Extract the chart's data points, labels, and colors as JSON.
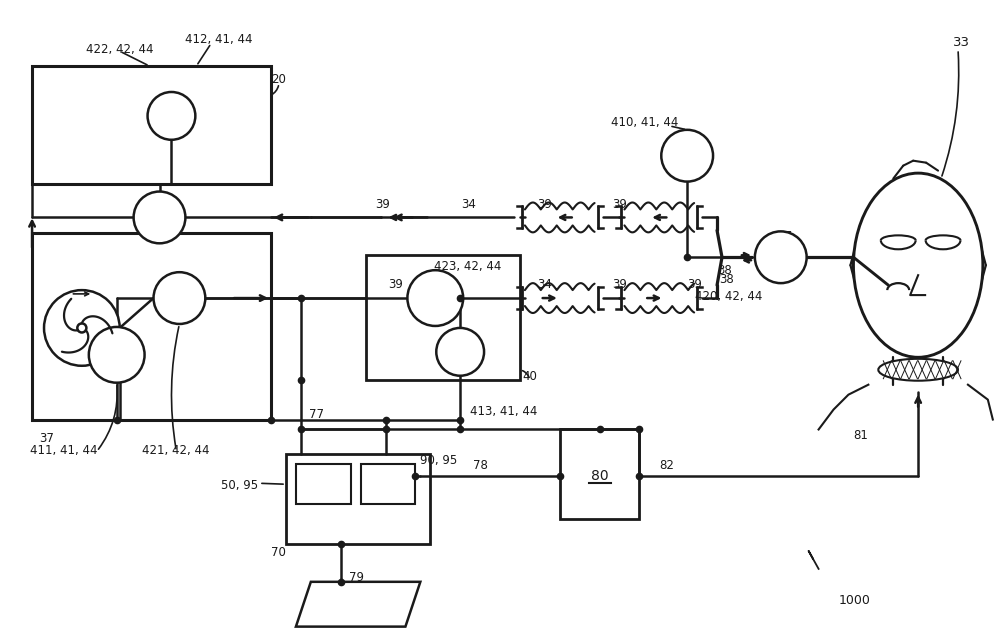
{
  "bg_color": "#ffffff",
  "lc": "#1a1a1a",
  "lw": 1.8,
  "fig_width": 10.0,
  "fig_height": 6.3,
  "dpi": 100
}
